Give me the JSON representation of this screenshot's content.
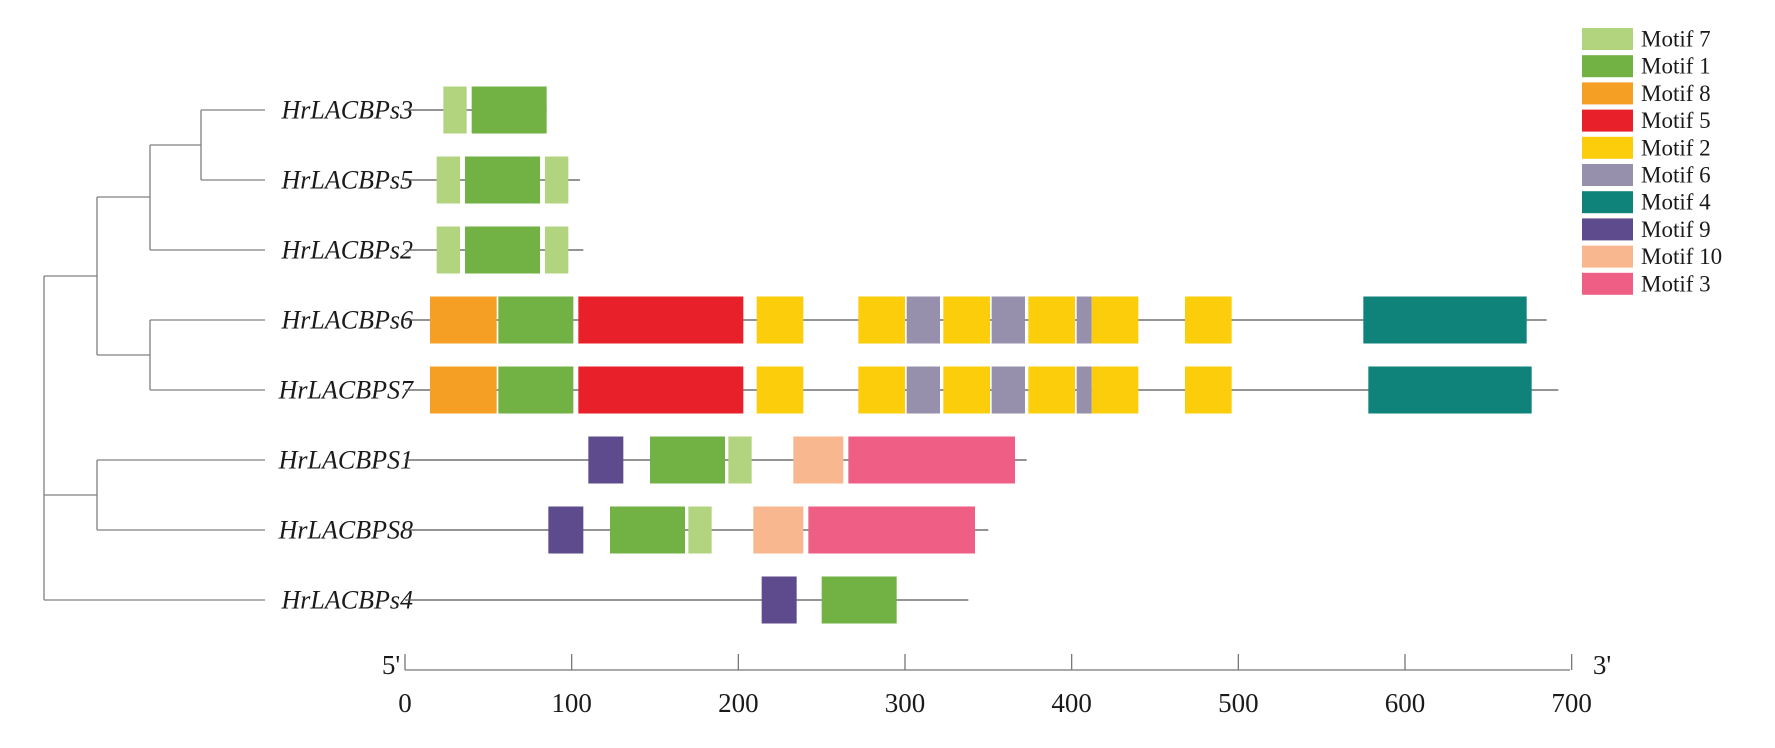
{
  "legend": [
    {
      "id": "m7",
      "label": "Motif 7",
      "color": "#b2d47f"
    },
    {
      "id": "m1",
      "label": "Motif 1",
      "color": "#72b143"
    },
    {
      "id": "m8",
      "label": "Motif 8",
      "color": "#f5a024"
    },
    {
      "id": "m5",
      "label": "Motif 5",
      "color": "#e8202a"
    },
    {
      "id": "m2",
      "label": "Motif 2",
      "color": "#fccd0a"
    },
    {
      "id": "m6",
      "label": "Motif 6",
      "color": "#9790ad"
    },
    {
      "id": "m4",
      "label": "Motif 4",
      "color": "#0f8379"
    },
    {
      "id": "m9",
      "label": "Motif 9",
      "color": "#5e4b8d"
    },
    {
      "id": "m10",
      "label": "Motif 10",
      "color": "#f8b78e"
    },
    {
      "id": "m3",
      "label": "Motif 3",
      "color": "#ef5e85"
    }
  ],
  "genes": [
    {
      "label": "HrLACBPs3",
      "length": 85,
      "motifs": [
        {
          "m": "m7",
          "s": 23,
          "e": 37
        },
        {
          "m": "m1",
          "s": 40,
          "e": 85
        }
      ]
    },
    {
      "label": "HrLACBPs5",
      "length": 105,
      "motifs": [
        {
          "m": "m7",
          "s": 19,
          "e": 33
        },
        {
          "m": "m1",
          "s": 36,
          "e": 81
        },
        {
          "m": "m7",
          "s": 84,
          "e": 98
        }
      ]
    },
    {
      "label": "HrLACBPs2",
      "length": 107,
      "motifs": [
        {
          "m": "m7",
          "s": 19,
          "e": 33
        },
        {
          "m": "m1",
          "s": 36,
          "e": 81
        },
        {
          "m": "m7",
          "s": 84,
          "e": 98
        }
      ]
    },
    {
      "label": "HrLACBPs6",
      "length": 685,
      "motifs": [
        {
          "m": "m8",
          "s": 15,
          "e": 55
        },
        {
          "m": "m1",
          "s": 56,
          "e": 101
        },
        {
          "m": "m5",
          "s": 104,
          "e": 203
        },
        {
          "m": "m2",
          "s": 211,
          "e": 239
        },
        {
          "m": "m2",
          "s": 272,
          "e": 300
        },
        {
          "m": "m6",
          "s": 301,
          "e": 321
        },
        {
          "m": "m2",
          "s": 323,
          "e": 351
        },
        {
          "m": "m6",
          "s": 352,
          "e": 372
        },
        {
          "m": "m2",
          "s": 374,
          "e": 402
        },
        {
          "m": "m6",
          "s": 403,
          "e": 412
        },
        {
          "m": "m2",
          "s": 412,
          "e": 440
        },
        {
          "m": "m2",
          "s": 468,
          "e": 496
        },
        {
          "m": "m4",
          "s": 575,
          "e": 673
        }
      ]
    },
    {
      "label": "HrLACBPS7",
      "length": 692,
      "motifs": [
        {
          "m": "m8",
          "s": 15,
          "e": 55
        },
        {
          "m": "m1",
          "s": 56,
          "e": 101
        },
        {
          "m": "m5",
          "s": 104,
          "e": 203
        },
        {
          "m": "m2",
          "s": 211,
          "e": 239
        },
        {
          "m": "m2",
          "s": 272,
          "e": 300
        },
        {
          "m": "m6",
          "s": 301,
          "e": 321
        },
        {
          "m": "m2",
          "s": 323,
          "e": 351
        },
        {
          "m": "m6",
          "s": 352,
          "e": 372
        },
        {
          "m": "m2",
          "s": 374,
          "e": 402
        },
        {
          "m": "m6",
          "s": 403,
          "e": 412
        },
        {
          "m": "m2",
          "s": 412,
          "e": 440
        },
        {
          "m": "m2",
          "s": 468,
          "e": 496
        },
        {
          "m": "m4",
          "s": 578,
          "e": 676
        }
      ]
    },
    {
      "label": "HrLACBPS1",
      "length": 373,
      "motifs": [
        {
          "m": "m9",
          "s": 110,
          "e": 131
        },
        {
          "m": "m1",
          "s": 147,
          "e": 192
        },
        {
          "m": "m7",
          "s": 194,
          "e": 208
        },
        {
          "m": "m10",
          "s": 233,
          "e": 263
        },
        {
          "m": "m3",
          "s": 266,
          "e": 366
        }
      ]
    },
    {
      "label": "HrLACBPS8",
      "length": 350,
      "motifs": [
        {
          "m": "m9",
          "s": 86,
          "e": 107
        },
        {
          "m": "m1",
          "s": 123,
          "e": 168
        },
        {
          "m": "m7",
          "s": 170,
          "e": 184
        },
        {
          "m": "m10",
          "s": 209,
          "e": 239
        },
        {
          "m": "m3",
          "s": 242,
          "e": 342
        }
      ]
    },
    {
      "label": "HrLACBPs4",
      "length": 338,
      "motifs": [
        {
          "m": "m9",
          "s": 214,
          "e": 235
        },
        {
          "m": "m1",
          "s": 250,
          "e": 295
        }
      ]
    }
  ],
  "axis": {
    "min": 0,
    "max": 700,
    "ticks": [
      0,
      100,
      200,
      300,
      400,
      500,
      600,
      700
    ],
    "tick_labels": [
      "0",
      "100",
      "200",
      "300",
      "400",
      "500",
      "600",
      "700"
    ],
    "left_end_label": "5'",
    "right_end_label": "3'"
  }
}
